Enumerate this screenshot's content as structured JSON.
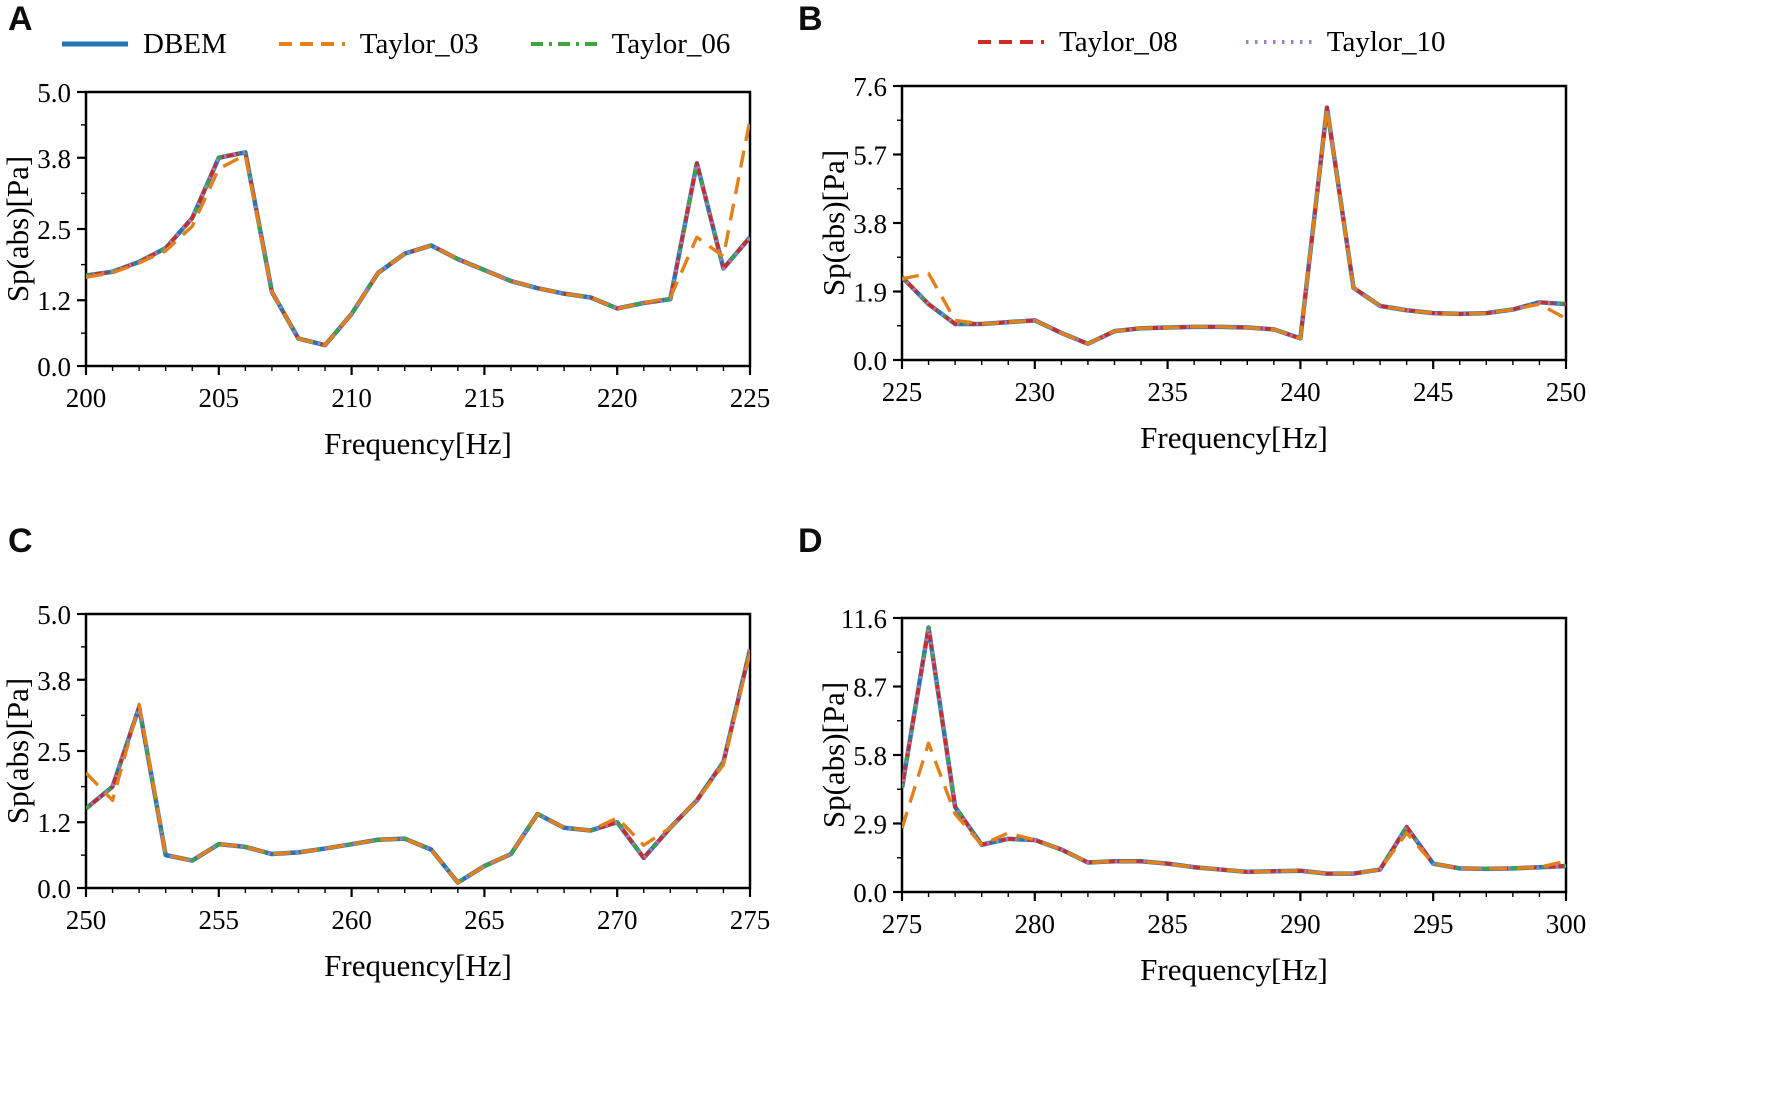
{
  "figure": {
    "background": "#ffffff",
    "xlabel": "Frequency[Hz]",
    "ylabel": "Sp(abs)[Pa]"
  },
  "legend": {
    "left": [
      {
        "label": "DBEM",
        "color": "#2474b6",
        "linestyle": "solid"
      },
      {
        "label": "Taylor_03",
        "color": "#e2811c",
        "linestyle": "dashed"
      },
      {
        "label": "Taylor_06",
        "color": "#3ea43c",
        "linestyle": "dashdot"
      }
    ],
    "right": [
      {
        "label": "Taylor_08",
        "color": "#cf2b24",
        "linestyle": "dashed"
      },
      {
        "label": "Taylor_10",
        "color": "#a17cc4",
        "linestyle": "dotted"
      }
    ]
  },
  "chart_data": [
    {
      "panel_label": "A",
      "type": "line",
      "xlabel": "Frequency[Hz]",
      "ylabel": "Sp(abs)[Pa]",
      "xlim": [
        200,
        225
      ],
      "ylim": [
        0,
        5.0
      ],
      "xticks": [
        200,
        205,
        210,
        215,
        220,
        225
      ],
      "yticks": [
        0.0,
        1.2,
        2.5,
        3.8,
        5.0
      ],
      "legend_position": "above",
      "grid": false,
      "x": [
        200,
        201,
        202,
        203,
        204,
        205,
        206,
        207,
        208,
        209,
        210,
        211,
        212,
        213,
        214,
        215,
        216,
        217,
        218,
        219,
        220,
        221,
        222,
        223,
        224,
        225
      ],
      "series": [
        {
          "name": "DBEM",
          "values": [
            1.65,
            1.72,
            1.9,
            2.15,
            2.7,
            3.8,
            3.9,
            1.35,
            0.5,
            0.38,
            0.95,
            1.7,
            2.05,
            2.2,
            1.95,
            1.75,
            1.55,
            1.42,
            1.32,
            1.25,
            1.05,
            1.15,
            1.22,
            3.7,
            1.78,
            2.35
          ]
        },
        {
          "name": "Taylor_03",
          "values": [
            1.62,
            1.7,
            1.88,
            2.1,
            2.55,
            3.6,
            3.85,
            1.35,
            0.5,
            0.38,
            0.95,
            1.7,
            2.05,
            2.2,
            1.95,
            1.75,
            1.55,
            1.42,
            1.32,
            1.25,
            1.05,
            1.15,
            1.25,
            2.35,
            2.0,
            4.5
          ]
        },
        {
          "name": "Taylor_06",
          "values": [
            1.65,
            1.72,
            1.9,
            2.15,
            2.7,
            3.8,
            3.9,
            1.35,
            0.5,
            0.38,
            0.95,
            1.7,
            2.05,
            2.2,
            1.95,
            1.75,
            1.55,
            1.42,
            1.32,
            1.25,
            1.05,
            1.15,
            1.22,
            3.7,
            1.78,
            2.35
          ]
        },
        {
          "name": "Taylor_08",
          "values": [
            1.65,
            1.72,
            1.9,
            2.15,
            2.7,
            3.8,
            3.9,
            1.35,
            0.5,
            0.38,
            0.95,
            1.7,
            2.05,
            2.2,
            1.95,
            1.75,
            1.55,
            1.42,
            1.32,
            1.25,
            1.05,
            1.15,
            1.22,
            3.7,
            1.78,
            2.35
          ]
        },
        {
          "name": "Taylor_10",
          "values": [
            1.65,
            1.72,
            1.9,
            2.15,
            2.7,
            3.8,
            3.9,
            1.35,
            0.5,
            0.38,
            0.95,
            1.7,
            2.05,
            2.2,
            1.95,
            1.75,
            1.55,
            1.42,
            1.32,
            1.25,
            1.05,
            1.15,
            1.22,
            3.7,
            1.78,
            2.35
          ]
        }
      ]
    },
    {
      "panel_label": "B",
      "type": "line",
      "xlabel": "Frequency[Hz]",
      "ylabel": "Sp(abs)[Pa]",
      "xlim": [
        225,
        250
      ],
      "ylim": [
        0,
        7.6
      ],
      "xticks": [
        225,
        230,
        235,
        240,
        245,
        250
      ],
      "yticks": [
        0.0,
        1.9,
        3.8,
        5.7,
        7.6
      ],
      "legend_position": "above",
      "grid": false,
      "x": [
        225,
        226,
        227,
        228,
        229,
        230,
        231,
        232,
        233,
        234,
        235,
        236,
        237,
        238,
        239,
        240,
        241,
        242,
        243,
        244,
        245,
        246,
        247,
        248,
        249,
        250
      ],
      "series": [
        {
          "name": "DBEM",
          "values": [
            2.3,
            1.55,
            1.0,
            1.0,
            1.05,
            1.1,
            0.75,
            0.45,
            0.8,
            0.88,
            0.9,
            0.92,
            0.92,
            0.9,
            0.85,
            0.6,
            7.0,
            2.0,
            1.5,
            1.38,
            1.3,
            1.28,
            1.3,
            1.4,
            1.6,
            1.55
          ]
        },
        {
          "name": "Taylor_03",
          "values": [
            2.25,
            2.4,
            1.1,
            1.0,
            1.05,
            1.1,
            0.75,
            0.45,
            0.8,
            0.88,
            0.9,
            0.92,
            0.92,
            0.9,
            0.85,
            0.6,
            7.0,
            2.0,
            1.5,
            1.38,
            1.3,
            1.28,
            1.3,
            1.4,
            1.55,
            1.15
          ]
        },
        {
          "name": "Taylor_06",
          "values": [
            2.3,
            1.55,
            1.0,
            1.0,
            1.05,
            1.1,
            0.75,
            0.45,
            0.8,
            0.88,
            0.9,
            0.92,
            0.92,
            0.9,
            0.85,
            0.6,
            7.0,
            2.0,
            1.5,
            1.38,
            1.3,
            1.28,
            1.3,
            1.4,
            1.6,
            1.55
          ]
        },
        {
          "name": "Taylor_08",
          "values": [
            2.3,
            1.55,
            1.0,
            1.0,
            1.05,
            1.1,
            0.75,
            0.45,
            0.8,
            0.88,
            0.9,
            0.92,
            0.92,
            0.9,
            0.85,
            0.6,
            7.0,
            2.0,
            1.5,
            1.38,
            1.3,
            1.28,
            1.3,
            1.4,
            1.6,
            1.55
          ]
        },
        {
          "name": "Taylor_10",
          "values": [
            2.3,
            1.55,
            1.0,
            1.0,
            1.05,
            1.1,
            0.75,
            0.45,
            0.8,
            0.88,
            0.9,
            0.92,
            0.92,
            0.9,
            0.85,
            0.6,
            7.0,
            2.0,
            1.5,
            1.38,
            1.3,
            1.28,
            1.3,
            1.4,
            1.6,
            1.55
          ]
        }
      ]
    },
    {
      "panel_label": "C",
      "type": "line",
      "xlabel": "Frequency[Hz]",
      "ylabel": "Sp(abs)[Pa]",
      "xlim": [
        250,
        275
      ],
      "ylim": [
        0,
        5.0
      ],
      "xticks": [
        250,
        255,
        260,
        265,
        270,
        275
      ],
      "yticks": [
        0.0,
        1.2,
        2.5,
        3.8,
        5.0
      ],
      "legend_position": "none",
      "grid": false,
      "x": [
        250,
        251,
        252,
        253,
        254,
        255,
        256,
        257,
        258,
        259,
        260,
        261,
        262,
        263,
        264,
        265,
        266,
        267,
        268,
        269,
        270,
        271,
        272,
        273,
        274,
        275
      ],
      "series": [
        {
          "name": "DBEM",
          "values": [
            1.45,
            1.85,
            3.3,
            0.6,
            0.5,
            0.8,
            0.75,
            0.62,
            0.65,
            0.72,
            0.8,
            0.88,
            0.9,
            0.7,
            0.1,
            0.4,
            0.62,
            1.35,
            1.1,
            1.05,
            1.2,
            0.55,
            1.1,
            1.6,
            2.3,
            4.35
          ]
        },
        {
          "name": "Taylor_03",
          "values": [
            2.1,
            1.6,
            3.35,
            0.6,
            0.5,
            0.8,
            0.75,
            0.62,
            0.65,
            0.72,
            0.8,
            0.88,
            0.9,
            0.7,
            0.1,
            0.4,
            0.62,
            1.35,
            1.1,
            1.05,
            1.28,
            0.78,
            1.1,
            1.6,
            2.25,
            4.3
          ]
        },
        {
          "name": "Taylor_06",
          "values": [
            1.45,
            1.85,
            3.3,
            0.6,
            0.5,
            0.8,
            0.75,
            0.62,
            0.65,
            0.72,
            0.8,
            0.88,
            0.9,
            0.7,
            0.1,
            0.4,
            0.62,
            1.35,
            1.1,
            1.05,
            1.2,
            0.55,
            1.1,
            1.6,
            2.3,
            4.35
          ]
        },
        {
          "name": "Taylor_08",
          "values": [
            1.45,
            1.85,
            3.3,
            0.6,
            0.5,
            0.8,
            0.75,
            0.62,
            0.65,
            0.72,
            0.8,
            0.88,
            0.9,
            0.7,
            0.1,
            0.4,
            0.62,
            1.35,
            1.1,
            1.05,
            1.2,
            0.55,
            1.1,
            1.6,
            2.3,
            4.35
          ]
        },
        {
          "name": "Taylor_10",
          "values": [
            1.45,
            1.85,
            3.3,
            0.6,
            0.5,
            0.8,
            0.75,
            0.62,
            0.65,
            0.72,
            0.8,
            0.88,
            0.9,
            0.7,
            0.1,
            0.4,
            0.62,
            1.35,
            1.1,
            1.05,
            1.2,
            0.55,
            1.1,
            1.6,
            2.3,
            4.35
          ]
        }
      ]
    },
    {
      "panel_label": "D",
      "type": "line",
      "xlabel": "Frequency[Hz]",
      "ylabel": "Sp(abs)[Pa]",
      "xlim": [
        275,
        300
      ],
      "ylim": [
        0,
        11.6
      ],
      "xticks": [
        275,
        280,
        285,
        290,
        295,
        300
      ],
      "yticks": [
        0.0,
        2.9,
        5.8,
        8.7,
        11.6
      ],
      "legend_position": "none",
      "grid": false,
      "x": [
        275,
        276,
        277,
        278,
        279,
        280,
        281,
        282,
        283,
        284,
        285,
        286,
        287,
        288,
        289,
        290,
        291,
        292,
        293,
        294,
        295,
        296,
        297,
        298,
        299,
        300
      ],
      "series": [
        {
          "name": "DBEM",
          "values": [
            4.4,
            11.2,
            3.6,
            2.0,
            2.25,
            2.2,
            1.8,
            1.25,
            1.3,
            1.3,
            1.2,
            1.05,
            0.95,
            0.85,
            0.88,
            0.9,
            0.78,
            0.78,
            0.95,
            2.75,
            1.2,
            1.0,
            0.98,
            1.0,
            1.05,
            1.1
          ]
        },
        {
          "name": "Taylor_03",
          "values": [
            2.7,
            6.3,
            3.3,
            2.0,
            2.5,
            2.2,
            1.8,
            1.25,
            1.3,
            1.3,
            1.2,
            1.05,
            0.95,
            0.85,
            0.88,
            0.9,
            0.78,
            0.78,
            0.95,
            2.5,
            1.2,
            1.0,
            0.98,
            1.0,
            1.05,
            1.3
          ]
        },
        {
          "name": "Taylor_06",
          "values": [
            4.4,
            11.2,
            3.6,
            2.0,
            2.25,
            2.2,
            1.8,
            1.25,
            1.3,
            1.3,
            1.2,
            1.05,
            0.95,
            0.85,
            0.88,
            0.9,
            0.78,
            0.78,
            0.95,
            2.75,
            1.2,
            1.0,
            0.98,
            1.0,
            1.05,
            1.1
          ]
        },
        {
          "name": "Taylor_08",
          "values": [
            4.4,
            11.2,
            3.6,
            2.0,
            2.25,
            2.2,
            1.8,
            1.25,
            1.3,
            1.3,
            1.2,
            1.05,
            0.95,
            0.85,
            0.88,
            0.9,
            0.78,
            0.78,
            0.95,
            2.75,
            1.2,
            1.0,
            0.98,
            1.0,
            1.05,
            1.1
          ]
        },
        {
          "name": "Taylor_10",
          "values": [
            4.4,
            11.2,
            3.6,
            2.0,
            2.25,
            2.2,
            1.8,
            1.25,
            1.3,
            1.3,
            1.2,
            1.05,
            0.95,
            0.85,
            0.88,
            0.9,
            0.78,
            0.78,
            0.95,
            2.75,
            1.2,
            1.0,
            0.98,
            1.0,
            1.05,
            1.1
          ]
        }
      ]
    }
  ]
}
